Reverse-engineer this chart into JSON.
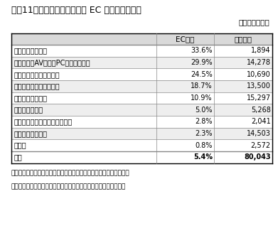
{
  "title": "図表11　日本の物販系分野の EC 化率と市場規模",
  "subtitle": "（単位：億円）",
  "col_headers": [
    "EC化率",
    "市場規模"
  ],
  "rows": [
    [
      "事務用品・文房具",
      "33.6%",
      "1,894"
    ],
    [
      "生活家電・AV機器・PC・周辺機器等",
      "29.9%",
      "14,278"
    ],
    [
      "書籍・映像・音楽ソフト",
      "24.5%",
      "10,690"
    ],
    [
      "雑貨・家具・インテリア",
      "18.7%",
      "13,500"
    ],
    [
      "衣類・服装雑貨等",
      "10.9%",
      "15,297"
    ],
    [
      "化粧品・医薬品",
      "5.0%",
      "5,268"
    ],
    [
      "自動車・自動二輪車・パーツ等",
      "2.8%",
      "2,041"
    ],
    [
      "食品・飲料・酒類",
      "2.3%",
      "14,503"
    ],
    [
      "その他",
      "0.8%",
      "2,572"
    ],
    [
      "合計",
      "5.4%",
      "80,043"
    ]
  ],
  "footer_line1": "出所：経済産業省「我が国におけるデータ駆動型社会に係る基盤整備",
  "footer_line2": "（電子商取引に関する市場調査）」を基にニッセイ基礎研究所作成",
  "bg_color": "#ffffff",
  "header_bg": "#d9d9d9",
  "row_alt_bg": "#eeeeee",
  "row_bg": "#ffffff",
  "border_color": "#888888",
  "outer_border_color": "#000000",
  "total_row_bg": "#ffffff",
  "text_color": "#000000",
  "title_fontsize": 9.0,
  "subtitle_fontsize": 7.5,
  "header_fontsize": 7.5,
  "data_fontsize": 7.0,
  "footer_fontsize": 6.5
}
